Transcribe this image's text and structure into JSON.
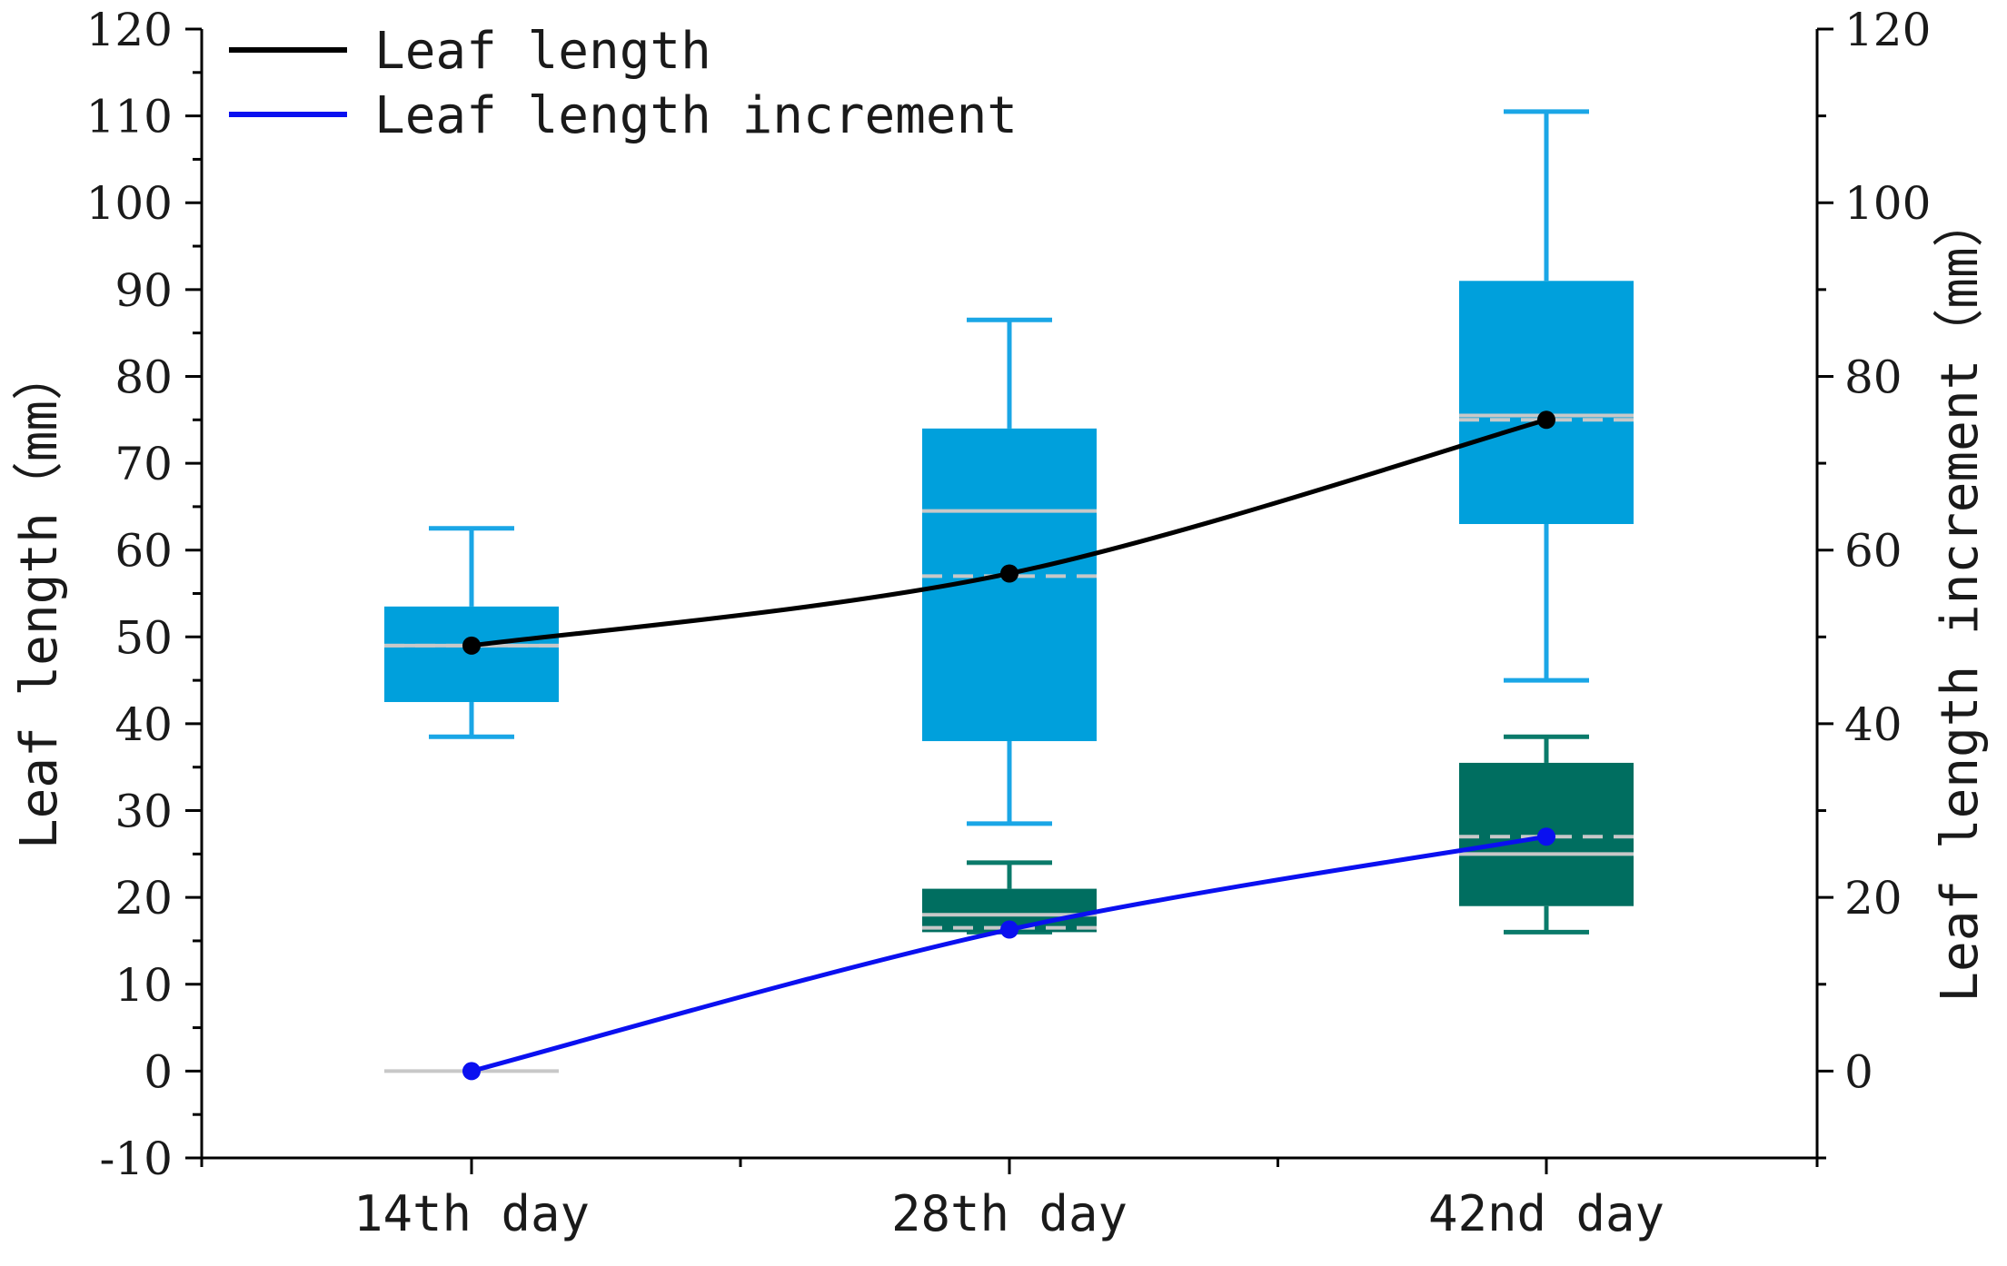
{
  "chart_data": {
    "type": "box-line-dual-axis",
    "categories": [
      "14th day",
      "28th day",
      "42nd day"
    ],
    "left_axis": {
      "label": "Leaf length（mm）",
      "ylim": [
        -10,
        120
      ],
      "ticks": [
        -10,
        0,
        10,
        20,
        30,
        40,
        50,
        60,
        70,
        80,
        90,
        100,
        110,
        120
      ]
    },
    "right_axis": {
      "label": "Leaf length increment（mm）",
      "ylim": [
        -10,
        120
      ],
      "ticks": [
        0,
        20,
        40,
        60,
        80,
        100,
        120
      ]
    },
    "legend": [
      {
        "label": "Leaf length",
        "color": "#000000"
      },
      {
        "label": "Leaf length increment",
        "color": "#0a10f0"
      }
    ],
    "box_series": [
      {
        "name": "Leaf length",
        "axis": "left",
        "color": "#00a0dc",
        "whisker_color": "#1aa6e6",
        "boxes": [
          {
            "category": "14th day",
            "min": 38.5,
            "q1": 42.5,
            "median": 49,
            "mean": 49,
            "q3": 53.5,
            "max": 62.5
          },
          {
            "category": "28th day",
            "min": 28.5,
            "q1": 38,
            "median": 64.5,
            "mean": 57,
            "q3": 74,
            "max": 86.5
          },
          {
            "category": "42nd day",
            "min": 45,
            "q1": 63,
            "median": 75.5,
            "mean": 75,
            "q3": 91,
            "max": 110.5
          }
        ]
      },
      {
        "name": "Leaf length increment",
        "axis": "right",
        "color": "#006e60",
        "whisker_color": "#0a7a6a",
        "boxes": [
          {
            "category": "14th day",
            "min": 0,
            "q1": 0,
            "median": 0,
            "mean": 0,
            "q3": 0,
            "max": 0
          },
          {
            "category": "28th day",
            "min": 16,
            "q1": 16,
            "median": 18,
            "mean": 16.5,
            "q3": 21,
            "max": 24
          },
          {
            "category": "42nd day",
            "min": 16,
            "q1": 19,
            "median": 25,
            "mean": 27,
            "q3": 35.5,
            "max": 38.5
          }
        ]
      }
    ],
    "line_series": [
      {
        "name": "Leaf length",
        "axis": "left",
        "color": "#000000",
        "values": [
          49,
          57.3,
          75
        ]
      },
      {
        "name": "Leaf length increment",
        "axis": "right",
        "color": "#0a10f0",
        "values": [
          0,
          16.3,
          27
        ]
      }
    ],
    "stat_line_color": "#c8c8c8"
  }
}
